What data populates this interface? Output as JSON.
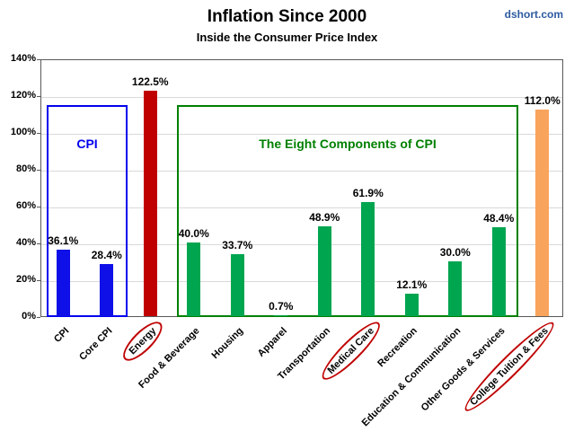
{
  "watermark": "dshort.com",
  "chart_data": {
    "type": "bar",
    "title": "Inflation Since 2000",
    "subtitle": "Inside the Consumer Price Index",
    "categories": [
      "CPI",
      "Core CPI",
      "Energy",
      "Food & Beverage",
      "Housing",
      "Apparel",
      "Transportation",
      "Medical Care",
      "Recreation",
      "Education & Communication",
      "Other Goods & Services",
      "College Tuition & Fees"
    ],
    "values": [
      36.1,
      28.4,
      122.5,
      40.0,
      33.7,
      0.7,
      48.9,
      61.9,
      12.1,
      30.0,
      48.4,
      112.0
    ],
    "value_labels": [
      "36.1%",
      "28.4%",
      "122.5%",
      "40.0%",
      "33.7%",
      "0.7%",
      "48.9%",
      "61.9%",
      "12.1%",
      "30.0%",
      "48.4%",
      "112.0%"
    ],
    "bar_colors": [
      "#0f0fe8",
      "#0f0fe8",
      "#c00000",
      "#00a550",
      "#00a550",
      "#00a550",
      "#00a550",
      "#00a550",
      "#00a550",
      "#00a550",
      "#00a550",
      "#f9a45c"
    ],
    "circled": [
      false,
      false,
      true,
      false,
      false,
      false,
      false,
      true,
      false,
      false,
      false,
      true
    ],
    "ylim": [
      0,
      140
    ],
    "ytick_step": 20,
    "ytick_labels": [
      "0%",
      "20%",
      "40%",
      "60%",
      "80%",
      "100%",
      "120%",
      "140%"
    ],
    "grid": true,
    "legend": "none",
    "xlabel": "",
    "ylabel": "",
    "annotations": {
      "cpi_group_label": "CPI",
      "components_group_label": "The Eight Components of CPI"
    },
    "colors": {
      "cpi_box": "#0000ee",
      "components_box": "#008000",
      "ellipse": "#c00000",
      "watermark": "#2d5aa0",
      "grid": "#d9d9d9",
      "axis": "#595959"
    }
  }
}
